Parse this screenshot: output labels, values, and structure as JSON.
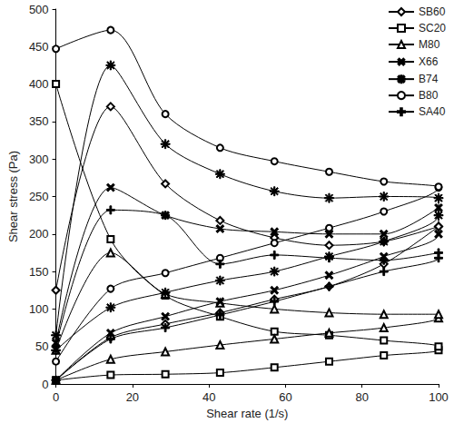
{
  "chart_data": {
    "type": "line",
    "x_label": "Shear rate (1/s)",
    "y_label": "Shear stress (Pa)",
    "x": [
      0,
      14.3,
      28.6,
      42.9,
      57.1,
      71.4,
      85.7,
      100,
      100,
      85.7,
      71.4,
      57.1,
      42.9,
      28.6,
      14.3,
      0
    ],
    "series": [
      {
        "name": "SB60",
        "color": "#000000",
        "marker": "diamond",
        "values": [
          5,
          62,
          80,
          95,
          113,
          130,
          160,
          210,
          210,
          190,
          185,
          195,
          218,
          267,
          370,
          125
        ]
      },
      {
        "name": "SC20",
        "color": "#000000",
        "marker": "square",
        "values": [
          5,
          12,
          13,
          15,
          22,
          30,
          38,
          45,
          50,
          58,
          65,
          70,
          90,
          118,
          193,
          400
        ]
      },
      {
        "name": "M80",
        "color": "#000000",
        "marker": "triangle",
        "values": [
          5,
          33,
          43,
          52,
          60,
          68,
          75,
          88,
          93,
          93,
          95,
          100,
          108,
          120,
          175,
          45
        ]
      },
      {
        "name": "X66",
        "color": "#000000",
        "marker": "x",
        "values": [
          5,
          68,
          90,
          110,
          125,
          145,
          170,
          200,
          235,
          200,
          200,
          203,
          207,
          225,
          262,
          55
        ]
      },
      {
        "name": "B74",
        "color": "#000000",
        "marker": "asterisk",
        "values": [
          45,
          102,
          122,
          138,
          150,
          170,
          190,
          225,
          248,
          250,
          248,
          257,
          280,
          320,
          425,
          65
        ]
      },
      {
        "name": "B80",
        "color": "#000000",
        "marker": "circle",
        "values": [
          30,
          127,
          148,
          168,
          188,
          208,
          230,
          262,
          263,
          270,
          283,
          297,
          315,
          360,
          472,
          447
        ]
      },
      {
        "name": "SA40",
        "color": "#000000",
        "marker": "plus",
        "values": [
          5,
          60,
          75,
          92,
          110,
          130,
          150,
          168,
          175,
          165,
          168,
          172,
          160,
          225,
          232,
          50
        ]
      }
    ],
    "xlim": [
      0,
      100
    ],
    "xticks": [
      0,
      20,
      40,
      60,
      80,
      100
    ],
    "ylim": [
      0,
      500
    ],
    "yticks": [
      0,
      50,
      100,
      150,
      200,
      250,
      300,
      350,
      400,
      450,
      500
    ],
    "grid": false,
    "legend": "upper right"
  }
}
